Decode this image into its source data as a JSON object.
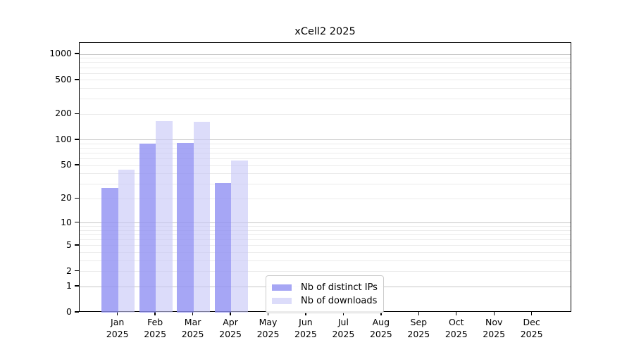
{
  "title": "xCell2 2025",
  "chart_data": {
    "type": "bar",
    "title": "xCell2 2025",
    "categories": [
      "Jan",
      "Feb",
      "Mar",
      "Apr",
      "May",
      "Jun",
      "Jul",
      "Aug",
      "Sep",
      "Oct",
      "Nov",
      "Dec"
    ],
    "x_year": "2025",
    "series": [
      {
        "name": "Nb of distinct IPs",
        "color": "#a6a6f4",
        "fill": "rgba(144,144,242,0.8)",
        "values": [
          27,
          90,
          92,
          31,
          0,
          0,
          0,
          0,
          0,
          0,
          0,
          0
        ]
      },
      {
        "name": "Nb of downloads",
        "color": "#dcdcfa",
        "fill": "rgba(199,199,247,0.62)",
        "values": [
          45,
          168,
          165,
          57,
          0,
          0,
          0,
          0,
          0,
          0,
          0,
          0
        ]
      }
    ],
    "yscale": "log1p",
    "yticks": [
      0,
      1,
      2,
      5,
      10,
      20,
      50,
      100,
      200,
      500,
      1000
    ],
    "ylim": [
      0,
      1354
    ],
    "grid": {
      "orientation": "horizontal",
      "major_color": "#c6c6c6",
      "minor_color": "#ebebeb"
    },
    "legend_position": "inside-bottom-center",
    "axis_color": "#000000"
  }
}
